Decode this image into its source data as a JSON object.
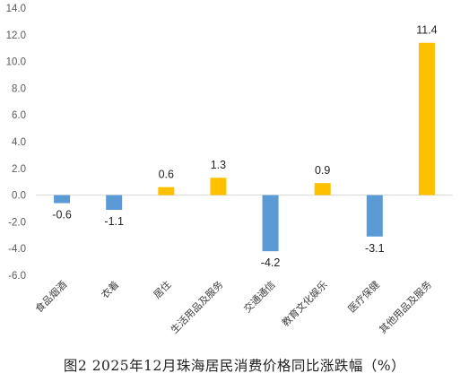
{
  "chart_data": {
    "type": "bar",
    "categories": [
      "食品烟酒",
      "衣着",
      "居住",
      "生活用品及服务",
      "交通通信",
      "教育文化娱乐",
      "医疗保健",
      "其他用品及服务"
    ],
    "values": [
      -0.6,
      -1.1,
      0.6,
      1.3,
      -4.2,
      0.9,
      -3.1,
      11.4
    ],
    "data_labels": [
      "-0.6",
      "-1.1",
      "0.6",
      "1.3",
      "-4.2",
      "0.9",
      "-3.1",
      "11.4"
    ],
    "y_ticks": [
      "14.0",
      "12.0",
      "10.0",
      "8.0",
      "6.0",
      "4.0",
      "2.0",
      "0.0",
      "-2.0",
      "-4.0",
      "-6.0"
    ],
    "ylim": [
      -6,
      14
    ],
    "grid": false,
    "legend": "none",
    "colors": {
      "positive": "#FFC000",
      "negative": "#5B9BD5",
      "axis": "#D9D9D9"
    },
    "title": "图2  2025年12月珠海居民消费价格同比涨跌幅（%）"
  }
}
